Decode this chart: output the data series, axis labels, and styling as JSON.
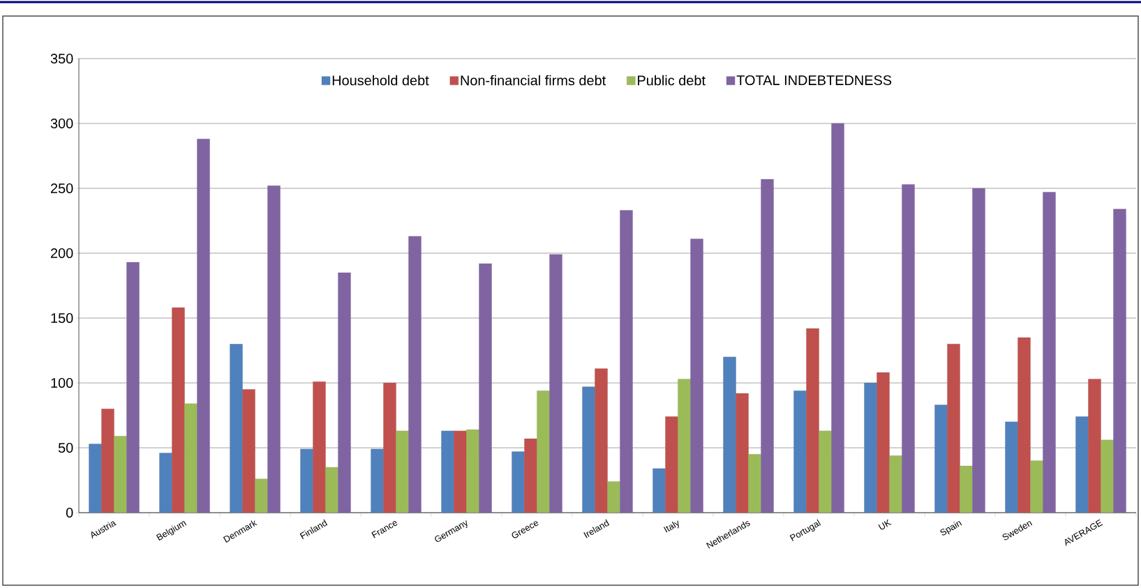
{
  "chart_data": {
    "type": "bar",
    "categories": [
      "Austria",
      "Belgium",
      "Denmark",
      "Finland",
      "France",
      "Germany",
      "Greece",
      "Ireland",
      "Italy",
      "Netherlands",
      "Portugal",
      "UK",
      "Spain",
      "Sweden",
      "AVERAGE"
    ],
    "series": [
      {
        "name": "Household debt",
        "color": "#4f81bd",
        "values": [
          53,
          46,
          130,
          49,
          49,
          63,
          47,
          97,
          34,
          120,
          94,
          100,
          83,
          70,
          74
        ]
      },
      {
        "name": "Non-financial firms debt",
        "color": "#c0504d",
        "values": [
          80,
          158,
          95,
          101,
          100,
          63,
          57,
          111,
          74,
          92,
          142,
          108,
          130,
          135,
          103
        ]
      },
      {
        "name": "Public debt",
        "color": "#9bbb59",
        "values": [
          59,
          84,
          26,
          35,
          63,
          64,
          94,
          24,
          103,
          45,
          63,
          44,
          36,
          40,
          56
        ]
      },
      {
        "name": "TOTAL INDEBTEDNESS",
        "color": "#8064a2",
        "values": [
          193,
          288,
          252,
          185,
          213,
          192,
          199,
          233,
          211,
          257,
          300,
          253,
          250,
          247,
          234
        ]
      }
    ],
    "ylim": [
      0,
      350
    ],
    "yticks": [
      0,
      50,
      100,
      150,
      200,
      250,
      300,
      350
    ],
    "grid": "y",
    "legend": "top"
  }
}
